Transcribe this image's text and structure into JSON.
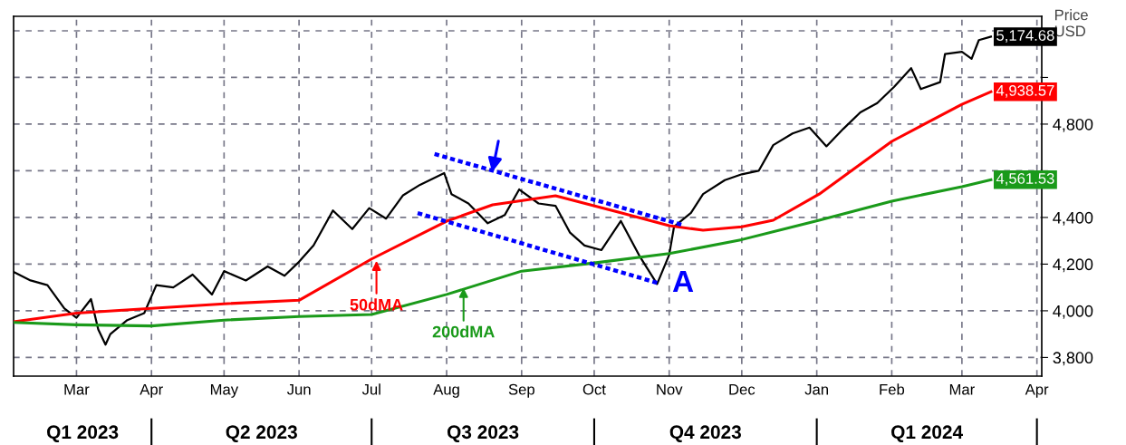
{
  "chart_data": {
    "type": "line",
    "ylabel": "Price\nUSD",
    "x": [
      "2023-02-03",
      "2023-02-10",
      "2023-02-17",
      "2023-02-24",
      "2023-03-01",
      "2023-03-07",
      "2023-03-10",
      "2023-03-13",
      "2023-03-15",
      "2023-03-22",
      "2023-03-29",
      "2023-04-03",
      "2023-04-10",
      "2023-04-18",
      "2023-04-26",
      "2023-05-01",
      "2023-05-10",
      "2023-05-19",
      "2023-05-26",
      "2023-06-01",
      "2023-06-07",
      "2023-06-15",
      "2023-06-23",
      "2023-06-30",
      "2023-07-07",
      "2023-07-14",
      "2023-07-21",
      "2023-07-31",
      "2023-08-03",
      "2023-08-10",
      "2023-08-18",
      "2023-08-25",
      "2023-08-31",
      "2023-09-08",
      "2023-09-15",
      "2023-09-21",
      "2023-09-27",
      "2023-10-04",
      "2023-10-12",
      "2023-10-20",
      "2023-10-27",
      "2023-11-01",
      "2023-11-03",
      "2023-11-10",
      "2023-11-15",
      "2023-11-24",
      "2023-12-01",
      "2023-12-08",
      "2023-12-14",
      "2023-12-22",
      "2023-12-29",
      "2024-01-05",
      "2024-01-12",
      "2024-01-19",
      "2024-01-26",
      "2024-02-02",
      "2024-02-09",
      "2024-02-13",
      "2024-02-21",
      "2024-02-23",
      "2024-03-01",
      "2024-03-05",
      "2024-03-08",
      "2024-03-13"
    ],
    "series": [
      {
        "color": "#000000",
        "values": [
          4167,
          4130,
          4110,
          4010,
          3970,
          4050,
          3920,
          3855,
          3900,
          3960,
          3990,
          4110,
          4100,
          4155,
          4070,
          4170,
          4130,
          4190,
          4150,
          4210,
          4280,
          4430,
          4350,
          4440,
          4395,
          4495,
          4540,
          4590,
          4500,
          4460,
          4375,
          4410,
          4520,
          4460,
          4450,
          4335,
          4280,
          4260,
          4385,
          4230,
          4115,
          4240,
          4360,
          4420,
          4500,
          4560,
          4585,
          4600,
          4710,
          4760,
          4785,
          4705,
          4780,
          4850,
          4890,
          4960,
          5040,
          4950,
          4980,
          5100,
          5110,
          5080,
          5160,
          5174.68
        ],
        "value_labels": [
          null,
          null,
          null,
          null,
          null,
          null,
          null,
          null,
          null,
          null,
          null,
          null,
          null,
          null,
          null,
          null,
          null,
          null,
          null,
          null,
          null,
          null,
          null,
          null,
          null,
          null,
          null,
          null,
          null,
          null,
          null,
          null,
          null,
          null,
          null,
          null,
          null,
          null,
          null,
          null,
          null,
          null,
          null,
          null,
          null,
          null,
          null,
          null,
          null,
          null,
          null,
          null,
          null,
          null,
          null,
          null,
          null,
          null,
          null,
          null,
          null,
          null,
          null,
          "5,174.68"
        ]
      },
      {
        "color": "#ff0000",
        "x": [
          "2023-02-03",
          "2023-03-01",
          "2023-04-01",
          "2023-05-01",
          "2023-06-01",
          "2023-07-01",
          "2023-08-01",
          "2023-08-20",
          "2023-09-15",
          "2023-10-12",
          "2023-11-01",
          "2023-11-15",
          "2023-12-01",
          "2023-12-14",
          "2024-01-02",
          "2024-02-01",
          "2024-03-01",
          "2024-03-13"
        ],
        "values": [
          3953,
          3990,
          4010,
          4030,
          4045,
          4222,
          4384,
          4454,
          4493,
          4420,
          4365,
          4345,
          4360,
          4388,
          4500,
          4726,
          4885,
          4938.57
        ],
        "value_labels": [
          null,
          null,
          null,
          null,
          null,
          null,
          null,
          null,
          null,
          null,
          null,
          null,
          null,
          null,
          null,
          null,
          null,
          "4,938.57"
        ]
      },
      {
        "color": "#1a9a1a",
        "x": [
          "2023-02-03",
          "2023-03-01",
          "2023-04-01",
          "2023-05-01",
          "2023-06-01",
          "2023-07-01",
          "2023-08-01",
          "2023-09-01",
          "2023-10-01",
          "2023-11-01",
          "2023-12-01",
          "2024-01-02",
          "2024-02-01",
          "2024-03-01",
          "2024-03-13"
        ],
        "values": [
          3950,
          3940,
          3935,
          3960,
          3975,
          3984,
          4070,
          4170,
          4205,
          4245,
          4305,
          4388,
          4470,
          4532,
          4561.53
        ],
        "value_labels": [
          null,
          null,
          null,
          null,
          null,
          null,
          null,
          null,
          null,
          null,
          null,
          null,
          null,
          null,
          "4,561.53"
        ]
      },
      {
        "color": "#0000ff",
        "line_style": "dotted",
        "x": [
          "2023-07-27",
          "2023-11-06"
        ],
        "values": [
          4672,
          4369
        ]
      },
      {
        "color": "#0000ff",
        "line_style": "dotted",
        "x": [
          "2023-07-20",
          "2023-10-27"
        ],
        "values": [
          4419,
          4120
        ]
      }
    ],
    "xlim": [
      "2023-02-03",
      "2024-04-03"
    ],
    "ylim": [
      3720,
      5262
    ],
    "xticks": [
      {
        "value": "2023-03-01",
        "label": "Mar"
      },
      {
        "value": "2023-04-01",
        "label": "Apr"
      },
      {
        "value": "2023-05-01",
        "label": "May"
      },
      {
        "value": "2023-06-01",
        "label": "Jun"
      },
      {
        "value": "2023-07-01",
        "label": "Jul"
      },
      {
        "value": "2023-08-01",
        "label": "Aug"
      },
      {
        "value": "2023-09-01",
        "label": "Sep"
      },
      {
        "value": "2023-10-01",
        "label": "Oct"
      },
      {
        "value": "2023-11-01",
        "label": "Nov"
      },
      {
        "value": "2023-12-01",
        "label": "Dec"
      },
      {
        "value": "2024-01-01",
        "label": "Jan"
      },
      {
        "value": "2024-02-01",
        "label": "Feb"
      },
      {
        "value": "2024-03-01",
        "label": "Mar"
      },
      {
        "value": "2024-04-01",
        "label": "Apr"
      }
    ],
    "yticks": [
      {
        "value": 3800,
        "label": "3,800"
      },
      {
        "value": 4000,
        "label": "4,000"
      },
      {
        "value": 4200,
        "label": "4,200"
      },
      {
        "value": 4400,
        "label": "4,400"
      },
      {
        "value": 4600,
        "label": null
      },
      {
        "value": 4800,
        "label": "4,800"
      },
      {
        "value": 5000,
        "label": null
      },
      {
        "value": 5200,
        "label": null
      }
    ],
    "grid": true,
    "legend": false,
    "marker": "none",
    "line_style": "solid",
    "annotations": [
      {
        "text": "50dMA",
        "x": "2023-07-03",
        "y": 4225
      },
      {
        "text": "200dMA",
        "x": "2023-08-08",
        "y": 4109
      },
      {
        "text": "A",
        "x": "2023-10-27",
        "y": 4115
      },
      "Q1 2023",
      "Q2 2023",
      "Q3 2023",
      "Q4 2023",
      "Q1 2024"
    ]
  }
}
